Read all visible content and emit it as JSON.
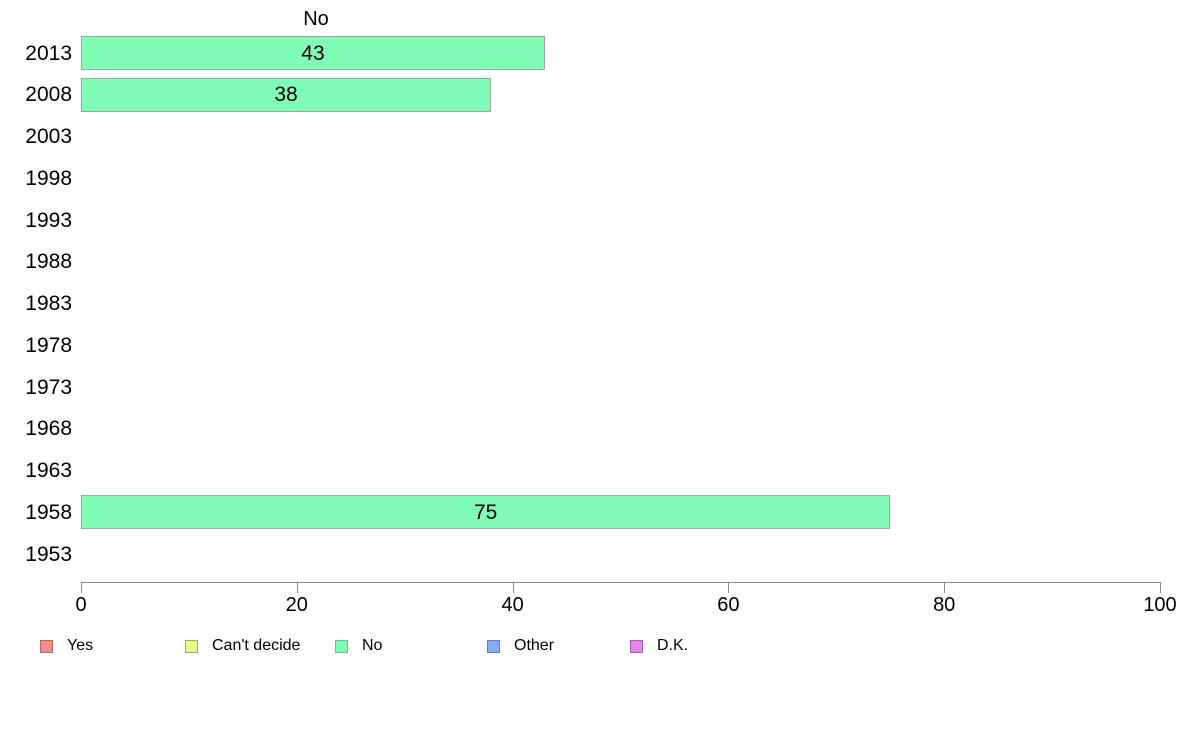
{
  "chart_data": {
    "type": "bar",
    "orientation": "horizontal",
    "title": "No",
    "xlabel": "",
    "ylabel": "",
    "categories": [
      "2013",
      "2008",
      "2003",
      "1998",
      "1993",
      "1988",
      "1983",
      "1978",
      "1973",
      "1968",
      "1963",
      "1958",
      "1953"
    ],
    "series": [
      {
        "name": "No",
        "values": [
          43,
          38,
          null,
          null,
          null,
          null,
          null,
          null,
          null,
          null,
          null,
          75,
          null
        ],
        "fill": "#80FCB7",
        "border": "#9aa89e"
      }
    ],
    "bar_labels_shown": true,
    "xlim": [
      0,
      100
    ],
    "x_ticks": [
      0,
      20,
      40,
      60,
      80,
      100
    ],
    "grid": "off",
    "axis_color": "#8a8a8a",
    "legend": {
      "position": "bottom",
      "entries": [
        {
          "label": "Yes",
          "fill": "#F48C8C",
          "border": "#AC6A6A"
        },
        {
          "label": "Can't decide",
          "fill": "#EEF98E",
          "border": "#A3AA5E"
        },
        {
          "label": "No",
          "fill": "#80FCB7",
          "border": "#6FBE91"
        },
        {
          "label": "Other",
          "fill": "#86ADF0",
          "border": "#6183B6"
        },
        {
          "label": "D.K.",
          "fill": "#E187EE",
          "border": "#A75EB2"
        }
      ]
    }
  }
}
